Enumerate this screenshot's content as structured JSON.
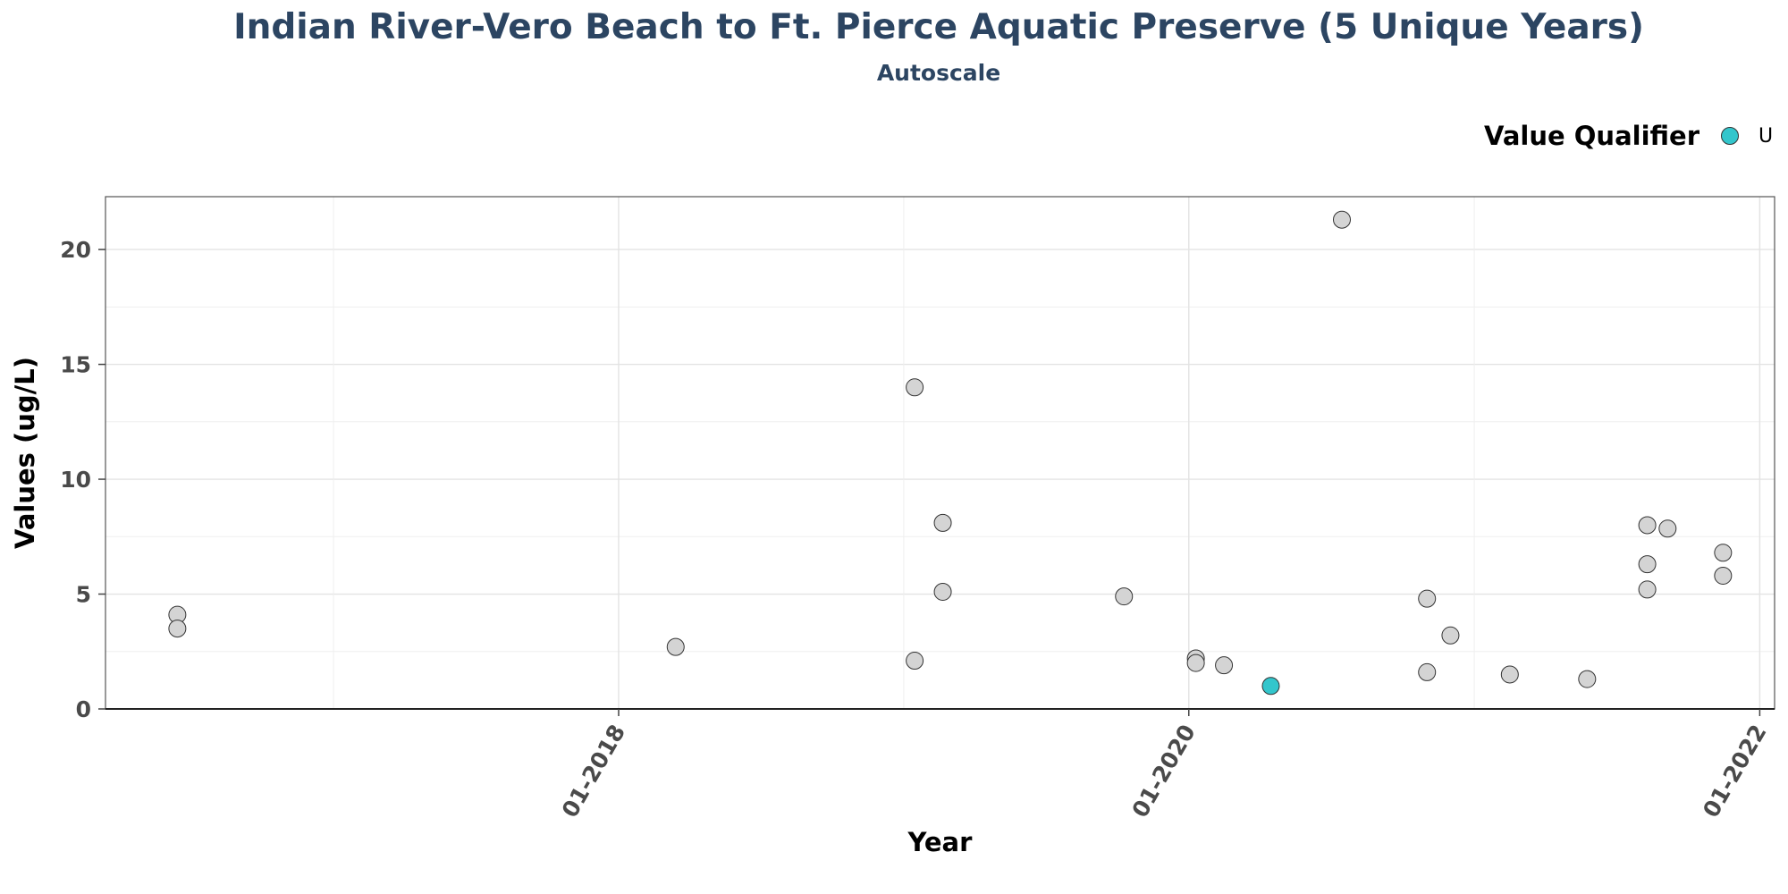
{
  "chart_data": {
    "type": "scatter",
    "title": "Indian River-Vero Beach to Ft. Pierce Aquatic Preserve (5 Unique Years)",
    "subtitle": "Autoscale",
    "xlabel": "Year",
    "ylabel": "Values (ug/L)",
    "xlim": [
      "2016-03-15",
      "2022-01-20"
    ],
    "ylim": [
      0,
      22.3
    ],
    "yticks": [
      0,
      5,
      10,
      15,
      20
    ],
    "xticks": [
      {
        "date": "2018-01-01",
        "label": "01-2018"
      },
      {
        "date": "2020-01-01",
        "label": "01-2020"
      },
      {
        "date": "2022-01-01",
        "label": "01-2022"
      }
    ],
    "grid": true,
    "legend": {
      "title": "Value Qualifier",
      "entries": [
        {
          "label": "U",
          "color": "#33c6cc"
        }
      ],
      "position": "top-right"
    },
    "default_color": "#d4d4d4",
    "points": [
      {
        "x": "2016-06-15",
        "y": 4.1
      },
      {
        "x": "2016-06-15",
        "y": 3.5
      },
      {
        "x": "2018-03-15",
        "y": 2.7
      },
      {
        "x": "2019-01-15",
        "y": 14.0
      },
      {
        "x": "2019-01-15",
        "y": 2.1
      },
      {
        "x": "2019-02-20",
        "y": 8.1
      },
      {
        "x": "2019-02-20",
        "y": 5.1
      },
      {
        "x": "2019-10-10",
        "y": 4.9
      },
      {
        "x": "2020-01-10",
        "y": 2.2
      },
      {
        "x": "2020-01-10",
        "y": 2.0
      },
      {
        "x": "2020-02-15",
        "y": 1.9
      },
      {
        "x": "2020-04-15",
        "y": 1.0,
        "qualifier": "U"
      },
      {
        "x": "2020-07-15",
        "y": 21.3
      },
      {
        "x": "2020-11-01",
        "y": 4.8
      },
      {
        "x": "2020-11-01",
        "y": 1.6
      },
      {
        "x": "2020-12-01",
        "y": 3.2
      },
      {
        "x": "2021-02-15",
        "y": 1.5
      },
      {
        "x": "2021-05-25",
        "y": 1.3
      },
      {
        "x": "2021-08-10",
        "y": 8.0
      },
      {
        "x": "2021-08-10",
        "y": 6.3
      },
      {
        "x": "2021-08-10",
        "y": 5.2
      },
      {
        "x": "2021-09-05",
        "y": 7.85
      },
      {
        "x": "2021-11-15",
        "y": 6.8
      },
      {
        "x": "2021-11-15",
        "y": 5.8
      }
    ]
  }
}
